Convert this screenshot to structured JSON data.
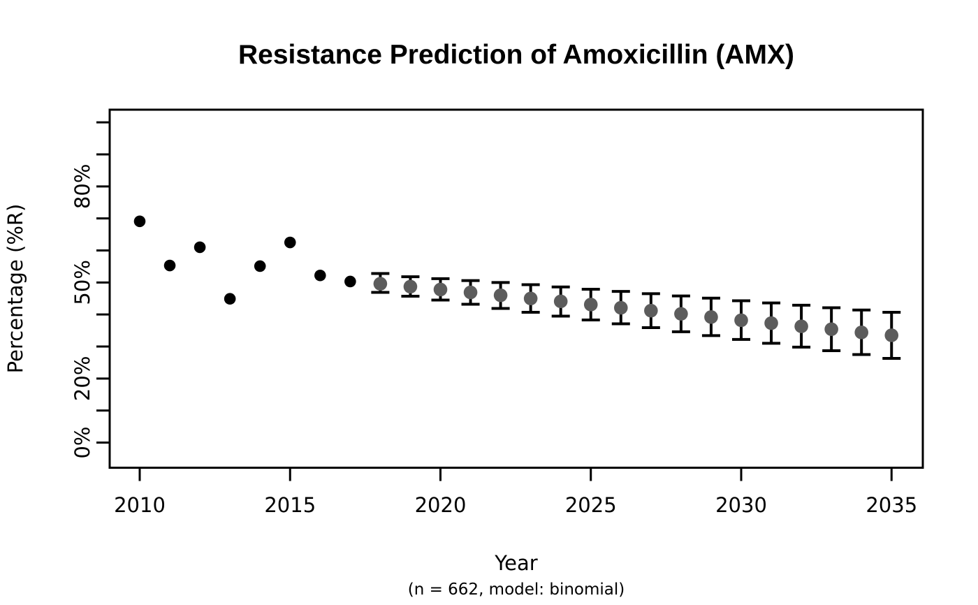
{
  "chart_data": {
    "type": "scatter",
    "title": "Resistance Prediction of Amoxicillin (AMX)",
    "xlabel": "Year",
    "ylabel": "Percentage (%R)",
    "caption": "(n = 662, model: binomial)",
    "grid": false,
    "legend": "none",
    "colors": {
      "observed_point": "#000000",
      "predicted_point": "#5c5c5c",
      "error_bar": "#000000",
      "axis": "#000000"
    },
    "x_axis": {
      "min": 2010,
      "max": 2035,
      "tick_years": [
        2010,
        2015,
        2020,
        2025,
        2030,
        2035
      ],
      "tick_labels": [
        "2010",
        "2015",
        "2020",
        "2025",
        "2030",
        "2035"
      ]
    },
    "y_axis": {
      "min": 0,
      "max": 100,
      "tick_step": 10,
      "labeled_ticks": [
        {
          "value": 0,
          "label": "0%"
        },
        {
          "value": 20,
          "label": "20%"
        },
        {
          "value": 50,
          "label": "50%"
        },
        {
          "value": 80,
          "label": "80%"
        }
      ]
    },
    "series": [
      {
        "name": "observed",
        "style": "point",
        "color": "#000000",
        "points": [
          {
            "x": 2010,
            "y": 69.1
          },
          {
            "x": 2011,
            "y": 55.3
          },
          {
            "x": 2012,
            "y": 61.0
          },
          {
            "x": 2013,
            "y": 44.9
          },
          {
            "x": 2014,
            "y": 55.1
          },
          {
            "x": 2015,
            "y": 62.5
          },
          {
            "x": 2016,
            "y": 52.2
          },
          {
            "x": 2017,
            "y": 50.3
          }
        ]
      },
      {
        "name": "predicted",
        "style": "point-errorbar",
        "color": "#5c5c5c",
        "errorbar_color": "#000000",
        "points": [
          {
            "x": 2018,
            "y": 49.6,
            "lo": 46.9,
            "hi": 52.8
          },
          {
            "x": 2019,
            "y": 48.7,
            "lo": 45.7,
            "hi": 51.8
          },
          {
            "x": 2020,
            "y": 47.8,
            "lo": 44.5,
            "hi": 51.2
          },
          {
            "x": 2021,
            "y": 46.9,
            "lo": 43.2,
            "hi": 50.6
          },
          {
            "x": 2022,
            "y": 46.0,
            "lo": 41.9,
            "hi": 50.0
          },
          {
            "x": 2023,
            "y": 45.0,
            "lo": 40.7,
            "hi": 49.3
          },
          {
            "x": 2024,
            "y": 44.1,
            "lo": 39.5,
            "hi": 48.6
          },
          {
            "x": 2025,
            "y": 43.1,
            "lo": 38.3,
            "hi": 47.9
          },
          {
            "x": 2026,
            "y": 42.1,
            "lo": 37.1,
            "hi": 47.2
          },
          {
            "x": 2027,
            "y": 41.2,
            "lo": 35.9,
            "hi": 46.5
          },
          {
            "x": 2028,
            "y": 40.2,
            "lo": 34.6,
            "hi": 45.8
          },
          {
            "x": 2029,
            "y": 39.2,
            "lo": 33.4,
            "hi": 45.1
          },
          {
            "x": 2030,
            "y": 38.2,
            "lo": 32.2,
            "hi": 44.3
          },
          {
            "x": 2031,
            "y": 37.3,
            "lo": 31.0,
            "hi": 43.6
          },
          {
            "x": 2032,
            "y": 36.3,
            "lo": 29.8,
            "hi": 42.9
          },
          {
            "x": 2033,
            "y": 35.4,
            "lo": 28.7,
            "hi": 42.1
          },
          {
            "x": 2034,
            "y": 34.4,
            "lo": 27.5,
            "hi": 41.4
          },
          {
            "x": 2035,
            "y": 33.5,
            "lo": 26.3,
            "hi": 40.7
          }
        ]
      }
    ]
  }
}
